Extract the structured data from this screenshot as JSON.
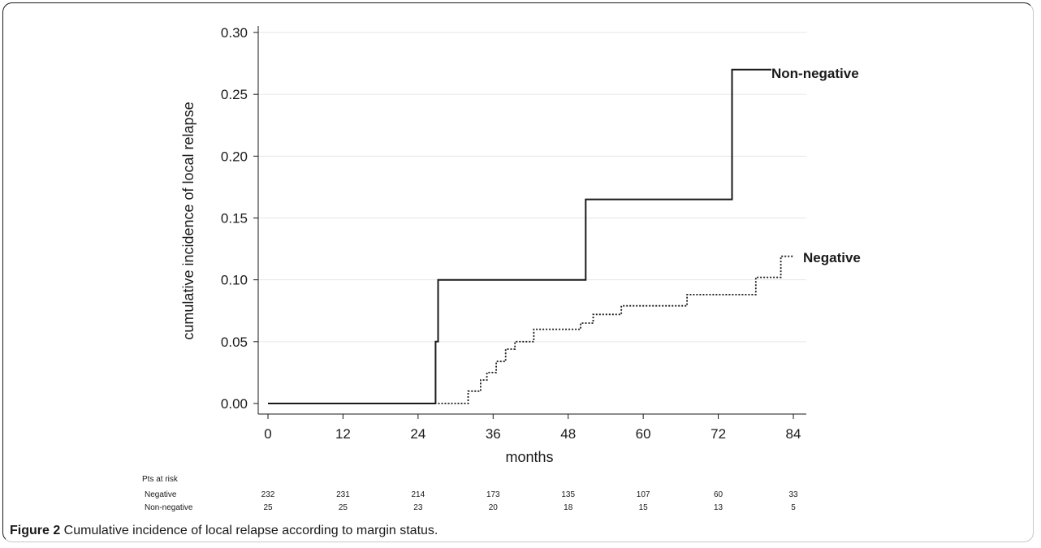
{
  "chart_data": {
    "type": "line",
    "title": "",
    "xlabel": "months",
    "ylabel": "cumulative incidence of local relapse",
    "xlim": [
      0,
      84
    ],
    "ylim": [
      0,
      0.3
    ],
    "x_ticks": [
      0,
      12,
      24,
      36,
      48,
      60,
      72,
      84
    ],
    "y_ticks": [
      "0.00",
      "0.05",
      "0.10",
      "0.15",
      "0.20",
      "0.25",
      "0.30"
    ],
    "grid": "horizontal",
    "series": [
      {
        "name": "Non-negative",
        "style": "solid",
        "color": "#1a1a1a",
        "points": [
          [
            0,
            0.0
          ],
          [
            26.8,
            0.0
          ],
          [
            26.8,
            0.05
          ],
          [
            27.2,
            0.05
          ],
          [
            27.2,
            0.1
          ],
          [
            50.8,
            0.1
          ],
          [
            50.8,
            0.165
          ],
          [
            74.2,
            0.165
          ],
          [
            74.2,
            0.27
          ],
          [
            80.5,
            0.27
          ]
        ]
      },
      {
        "name": "Negative",
        "style": "dotted",
        "color": "#1a1a1a",
        "points": [
          [
            27.2,
            0.0
          ],
          [
            32.0,
            0.0
          ],
          [
            32.0,
            0.01
          ],
          [
            34.0,
            0.01
          ],
          [
            34.0,
            0.019
          ],
          [
            35.0,
            0.019
          ],
          [
            35.0,
            0.025
          ],
          [
            36.5,
            0.025
          ],
          [
            36.5,
            0.034
          ],
          [
            38.0,
            0.034
          ],
          [
            38.0,
            0.044
          ],
          [
            39.5,
            0.044
          ],
          [
            39.5,
            0.05
          ],
          [
            42.5,
            0.05
          ],
          [
            42.5,
            0.06
          ],
          [
            50.0,
            0.06
          ],
          [
            50.0,
            0.065
          ],
          [
            52.0,
            0.065
          ],
          [
            52.0,
            0.072
          ],
          [
            56.5,
            0.072
          ],
          [
            56.5,
            0.079
          ],
          [
            67.0,
            0.079
          ],
          [
            67.0,
            0.088
          ],
          [
            78.0,
            0.088
          ],
          [
            78.0,
            0.102
          ],
          [
            82.0,
            0.102
          ],
          [
            82.0,
            0.119
          ],
          [
            84.0,
            0.119
          ]
        ]
      }
    ]
  },
  "risk_table": {
    "title": "Pts at risk",
    "rows": [
      {
        "label": "Negative",
        "values": [
          "232",
          "231",
          "214",
          "173",
          "135",
          "107",
          "60",
          "33"
        ]
      },
      {
        "label": "Non-negative",
        "values": [
          "25",
          "25",
          "23",
          "20",
          "18",
          "15",
          "13",
          "5"
        ]
      }
    ]
  },
  "caption": {
    "bold": "Figure 2",
    "text": " Cumulative incidence of local relapse according to margin status."
  }
}
